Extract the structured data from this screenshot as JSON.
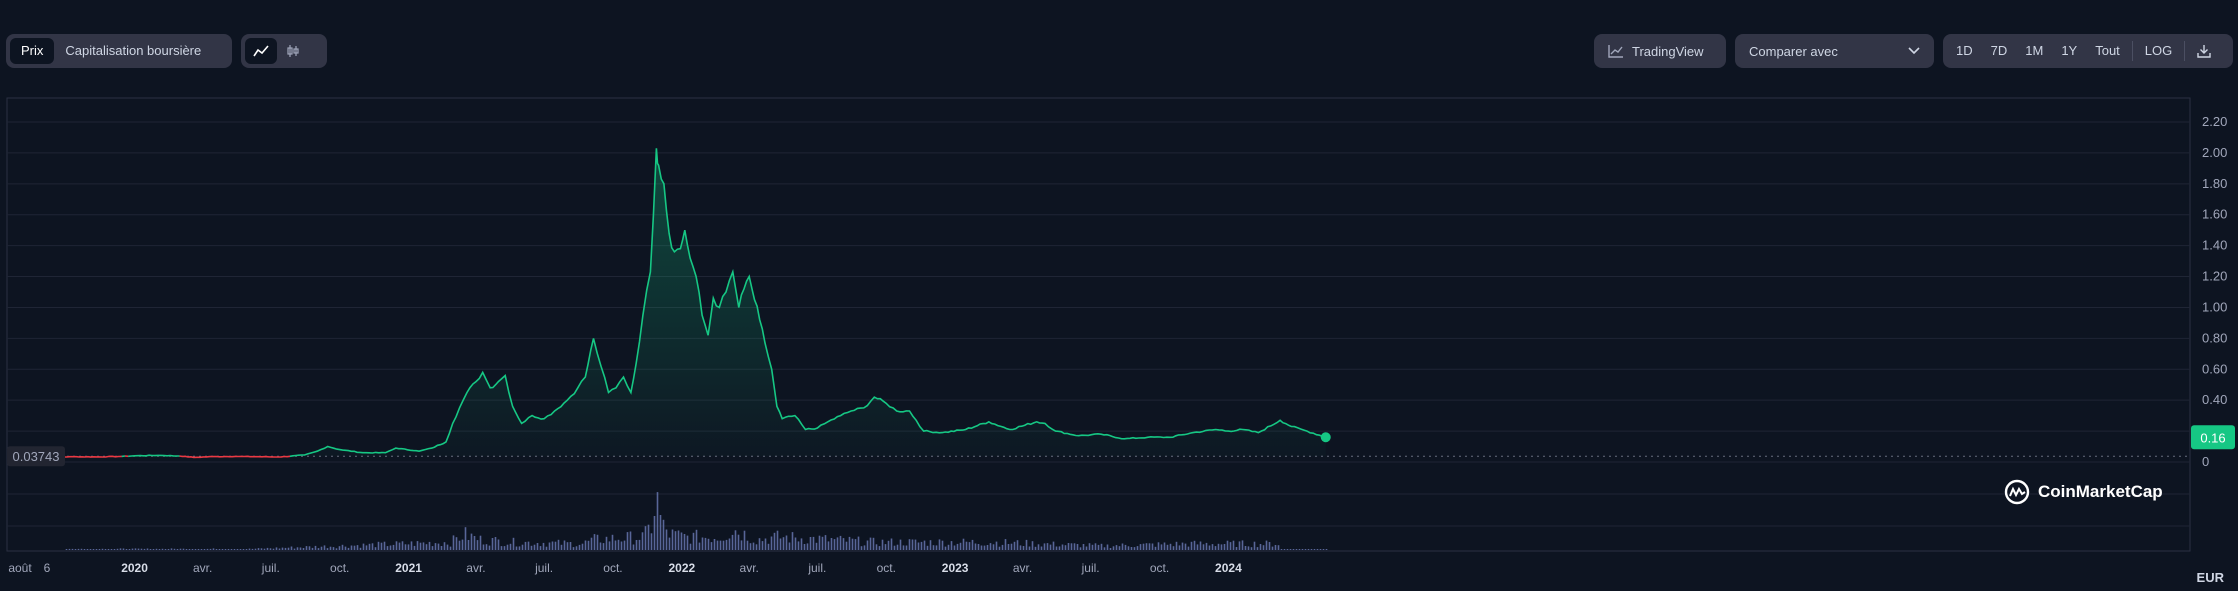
{
  "toolbar": {
    "tabs": [
      {
        "label": "Prix",
        "active": true
      },
      {
        "label": "Capitalisation boursière",
        "active": false
      }
    ],
    "chart_type_icons": [
      "line-chart-icon",
      "candlestick-icon"
    ],
    "tradingview_label": "TradingView",
    "compare_label": "Comparer avec",
    "ranges": [
      "1D",
      "7D",
      "1M",
      "1Y",
      "Tout"
    ],
    "log_label": "LOG",
    "download_icon": "download-icon"
  },
  "watermark": "CoinMarketCap",
  "currency": "EUR",
  "start_price_label": "0.03743",
  "current_price_label": "0.16",
  "colors": {
    "background": "#0d1421",
    "up_line": "#16c784",
    "down_line": "#ea3943",
    "volume": "#6c7ab6",
    "badge": "#16c784"
  },
  "chart_data": {
    "type": "area",
    "title": "",
    "xlabel": "",
    "ylabel": "",
    "ylim": [
      -0.18,
      2.4
    ],
    "y_ticks": [
      "0",
      "0.20",
      "0.40",
      "0.60",
      "0.80",
      "1.00",
      "1.20",
      "1.40",
      "1.60",
      "1.80",
      "2.00",
      "2.20"
    ],
    "baseline": 0.03743,
    "x_tick_labels": [
      {
        "label": "août",
        "date": "2019-08-01",
        "year": false
      },
      {
        "label": "6",
        "date": "2019-09-06",
        "year": false
      },
      {
        "label": "2020",
        "date": "2020-01-01",
        "year": true
      },
      {
        "label": "avr.",
        "date": "2020-04-01",
        "year": false
      },
      {
        "label": "juil.",
        "date": "2020-07-01",
        "year": false
      },
      {
        "label": "oct.",
        "date": "2020-10-01",
        "year": false
      },
      {
        "label": "2021",
        "date": "2021-01-01",
        "year": true
      },
      {
        "label": "avr.",
        "date": "2021-04-01",
        "year": false
      },
      {
        "label": "juil.",
        "date": "2021-07-01",
        "year": false
      },
      {
        "label": "oct.",
        "date": "2021-10-01",
        "year": false
      },
      {
        "label": "2022",
        "date": "2022-01-01",
        "year": true
      },
      {
        "label": "avr.",
        "date": "2022-04-01",
        "year": false
      },
      {
        "label": "juil.",
        "date": "2022-07-01",
        "year": false
      },
      {
        "label": "oct.",
        "date": "2022-10-01",
        "year": false
      },
      {
        "label": "2023",
        "date": "2023-01-01",
        "year": true
      },
      {
        "label": "avr.",
        "date": "2023-04-01",
        "year": false
      },
      {
        "label": "juil.",
        "date": "2023-07-01",
        "year": false
      },
      {
        "label": "oct.",
        "date": "2023-10-01",
        "year": false
      },
      {
        "label": "2024",
        "date": "2024-01-01",
        "year": true
      }
    ],
    "series": [
      {
        "points": [
          [
            "2019-08-15",
            0.037
          ],
          [
            "2019-09-15",
            0.032
          ],
          [
            "2019-10-15",
            0.034
          ],
          [
            "2019-11-15",
            0.033
          ],
          [
            "2019-12-15",
            0.036
          ],
          [
            "2020-01-01",
            0.04
          ],
          [
            "2020-02-01",
            0.043
          ],
          [
            "2020-03-01",
            0.039
          ],
          [
            "2020-03-20",
            0.03
          ],
          [
            "2020-04-15",
            0.035
          ],
          [
            "2020-05-15",
            0.036
          ],
          [
            "2020-06-15",
            0.034
          ],
          [
            "2020-07-15",
            0.033
          ],
          [
            "2020-08-15",
            0.045
          ],
          [
            "2020-09-01",
            0.07
          ],
          [
            "2020-09-15",
            0.1
          ],
          [
            "2020-10-01",
            0.08
          ],
          [
            "2020-11-01",
            0.06
          ],
          [
            "2020-12-01",
            0.06
          ],
          [
            "2020-12-15",
            0.09
          ],
          [
            "2021-01-15",
            0.07
          ],
          [
            "2021-02-01",
            0.09
          ],
          [
            "2021-02-20",
            0.13
          ],
          [
            "2021-03-01",
            0.25
          ],
          [
            "2021-03-10",
            0.35
          ],
          [
            "2021-03-20",
            0.45
          ],
          [
            "2021-04-01",
            0.52
          ],
          [
            "2021-04-10",
            0.58
          ],
          [
            "2021-04-20",
            0.48
          ],
          [
            "2021-05-01",
            0.52
          ],
          [
            "2021-05-10",
            0.56
          ],
          [
            "2021-05-20",
            0.36
          ],
          [
            "2021-06-01",
            0.25
          ],
          [
            "2021-06-15",
            0.3
          ],
          [
            "2021-07-01",
            0.28
          ],
          [
            "2021-07-15",
            0.33
          ],
          [
            "2021-08-01",
            0.4
          ],
          [
            "2021-08-15",
            0.48
          ],
          [
            "2021-08-25",
            0.55
          ],
          [
            "2021-09-05",
            0.8
          ],
          [
            "2021-09-15",
            0.62
          ],
          [
            "2021-09-25",
            0.45
          ],
          [
            "2021-10-05",
            0.48
          ],
          [
            "2021-10-15",
            0.55
          ],
          [
            "2021-10-25",
            0.45
          ],
          [
            "2021-11-01",
            0.64
          ],
          [
            "2021-11-10",
            0.95
          ],
          [
            "2021-11-20",
            1.23
          ],
          [
            "2021-11-28",
            2.03
          ],
          [
            "2021-12-01",
            1.92
          ],
          [
            "2021-12-08",
            1.8
          ],
          [
            "2021-12-15",
            1.48
          ],
          [
            "2021-12-22",
            1.36
          ],
          [
            "2021-12-30",
            1.38
          ],
          [
            "2022-01-05",
            1.5
          ],
          [
            "2022-01-12",
            1.32
          ],
          [
            "2022-01-20",
            1.2
          ],
          [
            "2022-01-28",
            0.95
          ],
          [
            "2022-02-05",
            0.82
          ],
          [
            "2022-02-12",
            1.06
          ],
          [
            "2022-02-20",
            1.0
          ],
          [
            "2022-03-01",
            1.1
          ],
          [
            "2022-03-10",
            1.23
          ],
          [
            "2022-03-18",
            1.0
          ],
          [
            "2022-03-25",
            1.12
          ],
          [
            "2022-04-01",
            1.2
          ],
          [
            "2022-04-08",
            1.05
          ],
          [
            "2022-04-15",
            0.92
          ],
          [
            "2022-04-22",
            0.77
          ],
          [
            "2022-05-01",
            0.6
          ],
          [
            "2022-05-08",
            0.36
          ],
          [
            "2022-05-15",
            0.28
          ],
          [
            "2022-06-01",
            0.3
          ],
          [
            "2022-06-15",
            0.21
          ],
          [
            "2022-07-01",
            0.22
          ],
          [
            "2022-07-15",
            0.26
          ],
          [
            "2022-08-01",
            0.3
          ],
          [
            "2022-08-15",
            0.33
          ],
          [
            "2022-09-01",
            0.35
          ],
          [
            "2022-09-15",
            0.42
          ],
          [
            "2022-10-01",
            0.38
          ],
          [
            "2022-10-15",
            0.33
          ],
          [
            "2022-11-01",
            0.33
          ],
          [
            "2022-11-10",
            0.27
          ],
          [
            "2022-11-20",
            0.2
          ],
          [
            "2022-12-15",
            0.19
          ],
          [
            "2023-01-15",
            0.21
          ],
          [
            "2023-02-15",
            0.26
          ],
          [
            "2023-03-15",
            0.21
          ],
          [
            "2023-04-20",
            0.26
          ],
          [
            "2023-05-01",
            0.25
          ],
          [
            "2023-05-15",
            0.2
          ],
          [
            "2023-06-15",
            0.17
          ],
          [
            "2023-07-15",
            0.18
          ],
          [
            "2023-08-15",
            0.15
          ],
          [
            "2023-09-15",
            0.16
          ],
          [
            "2023-10-15",
            0.16
          ],
          [
            "2023-11-15",
            0.19
          ],
          [
            "2023-12-15",
            0.21
          ],
          [
            "2024-01-01",
            0.2
          ],
          [
            "2024-01-20",
            0.21
          ],
          [
            "2024-02-10",
            0.19
          ],
          [
            "2024-03-10",
            0.27
          ],
          [
            "2024-03-25",
            0.23
          ],
          [
            "2024-04-15",
            0.2
          ],
          [
            "2024-05-10",
            0.16
          ]
        ]
      }
    ],
    "volume": {
      "note_units": "relative",
      "points": [
        [
          "2019-10-01",
          0.02
        ],
        [
          "2020-06-01",
          0.02
        ],
        [
          "2021-02-25",
          0.15
        ],
        [
          "2021-03-15",
          0.3
        ],
        [
          "2021-04-05",
          0.2
        ],
        [
          "2021-05-20",
          0.15
        ],
        [
          "2021-08-20",
          0.12
        ],
        [
          "2021-09-05",
          0.2
        ],
        [
          "2021-11-10",
          0.25
        ],
        [
          "2021-11-20",
          0.45
        ],
        [
          "2021-11-27",
          1.0
        ],
        [
          "2021-12-05",
          0.45
        ],
        [
          "2021-12-15",
          0.3
        ],
        [
          "2022-01-05",
          0.25
        ],
        [
          "2022-02-20",
          0.25
        ],
        [
          "2022-03-10",
          0.4
        ],
        [
          "2022-04-10",
          0.2
        ],
        [
          "2022-05-10",
          0.25
        ],
        [
          "2022-09-15",
          0.15
        ],
        [
          "2023-02-15",
          0.15
        ],
        [
          "2023-07-15",
          0.08
        ],
        [
          "2023-11-10",
          0.12
        ],
        [
          "2024-03-10",
          0.12
        ]
      ]
    }
  }
}
